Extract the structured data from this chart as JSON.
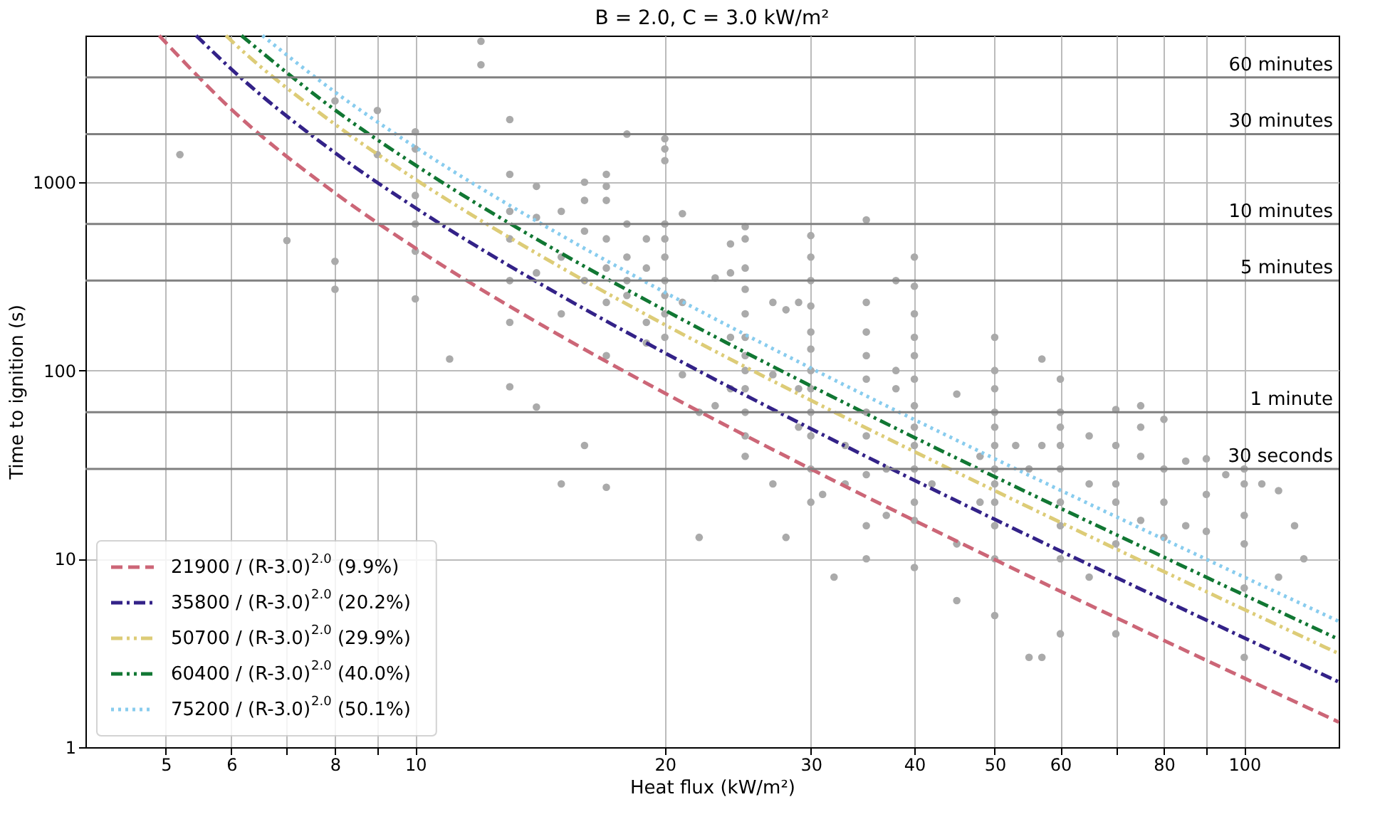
{
  "chart_data": {
    "type": "scatter",
    "title": "B = 2.0, C = 3.0 kW/m²",
    "xlabel": "Heat flux (kW/m²)",
    "ylabel": "Time to ignition (s)",
    "log": "xy",
    "grid": true,
    "legend": "bottom left",
    "xlim": [
      4,
      130
    ],
    "ylim": [
      1,
      6000
    ],
    "xticks": [
      5,
      6,
      {
        "value": 7,
        "label": null
      },
      8,
      {
        "value": 9,
        "label": null
      },
      10,
      20,
      30,
      40,
      50,
      60,
      {
        "value": 70,
        "label": null
      },
      80,
      {
        "value": 90,
        "label": null
      },
      100
    ],
    "yticks": [
      1,
      10,
      100,
      {
        "value": 1000,
        "label": "1000"
      }
    ],
    "series": [
      {
        "color": "#aaaaaa",
        "marker": "circle",
        "x": [
          5.2,
          7,
          8,
          8,
          8,
          9,
          9,
          10,
          10,
          10,
          10,
          10,
          10,
          11,
          12,
          12,
          13,
          13,
          13,
          13,
          13,
          13,
          13,
          14,
          14,
          14,
          14,
          15,
          15,
          15,
          15,
          16,
          16,
          16,
          16,
          16,
          17,
          17,
          17,
          17,
          17,
          17,
          17,
          17,
          18,
          18,
          18,
          18,
          18,
          19,
          19,
          19,
          19,
          20,
          20,
          20,
          20,
          20,
          20,
          20,
          20,
          20,
          20,
          21,
          21,
          21,
          22,
          22,
          23,
          23,
          24,
          24,
          24,
          24,
          25,
          25,
          25,
          25,
          25,
          25,
          25,
          25,
          25,
          25,
          25,
          25,
          27,
          27,
          27,
          28,
          28,
          29,
          29,
          29,
          30,
          30,
          30,
          30,
          30,
          30,
          30,
          30,
          30,
          30,
          30,
          30,
          31,
          32,
          33,
          33,
          35,
          35,
          35,
          35,
          35,
          35,
          35,
          35,
          35,
          35,
          37,
          37,
          38,
          38,
          38,
          40,
          40,
          40,
          40,
          40,
          40,
          40,
          40,
          40,
          40,
          40,
          40,
          40,
          42,
          45,
          45,
          45,
          48,
          48,
          50,
          50,
          50,
          50,
          50,
          50,
          50,
          50,
          50,
          50,
          50,
          50,
          53,
          55,
          55,
          57,
          57,
          57,
          60,
          60,
          60,
          60,
          60,
          60,
          60,
          60,
          60,
          65,
          65,
          65,
          70,
          70,
          70,
          70,
          70,
          70,
          75,
          75,
          75,
          75,
          80,
          80,
          80,
          80,
          85,
          85,
          90,
          90,
          90,
          95,
          100,
          100,
          100,
          100,
          100,
          100,
          105,
          110,
          110,
          115,
          118
        ],
        "values": [
          1400,
          490,
          2700,
          380,
          270,
          2400,
          1400,
          1850,
          1500,
          850,
          600,
          430,
          240,
          115,
          5600,
          4200,
          2150,
          1100,
          700,
          500,
          300,
          180,
          82,
          950,
          650,
          330,
          64,
          700,
          400,
          200,
          25,
          1000,
          800,
          550,
          300,
          40,
          1100,
          950,
          800,
          500,
          350,
          230,
          120,
          24,
          1800,
          600,
          400,
          300,
          250,
          500,
          350,
          180,
          140,
          1700,
          1500,
          1300,
          600,
          500,
          400,
          300,
          250,
          200,
          150,
          680,
          230,
          95,
          60,
          13,
          310,
          65,
          470,
          330,
          150,
          80,
          580,
          500,
          350,
          270,
          200,
          150,
          120,
          100,
          80,
          60,
          45,
          35,
          230,
          95,
          25,
          210,
          13,
          230,
          80,
          50,
          520,
          400,
          300,
          220,
          160,
          130,
          100,
          80,
          60,
          45,
          30,
          20,
          22,
          8,
          40,
          25,
          630,
          230,
          160,
          120,
          90,
          60,
          45,
          28,
          15,
          10,
          30,
          17,
          300,
          100,
          80,
          400,
          280,
          200,
          150,
          120,
          90,
          65,
          50,
          40,
          30,
          20,
          16,
          9,
          25,
          75,
          12,
          6,
          35,
          20,
          150,
          100,
          80,
          60,
          50,
          40,
          30,
          25,
          20,
          15,
          10,
          5,
          40,
          30,
          3,
          115,
          40,
          3,
          90,
          60,
          50,
          40,
          30,
          20,
          15,
          10,
          4,
          45,
          25,
          8,
          62,
          40,
          25,
          20,
          12,
          4,
          65,
          50,
          35,
          16,
          55,
          30,
          20,
          13,
          33,
          15,
          34,
          22,
          14,
          28,
          30,
          25,
          17,
          12,
          7,
          3,
          25,
          23,
          8,
          15,
          10
        ]
      },
      {
        "type": "line",
        "name": "21900 / (R-3.0)$^{2.0}$ (9.9%)",
        "color": "#cc6677",
        "line_style": "dashed",
        "x": [
          4.91,
          6,
          8,
          10,
          15,
          20,
          30,
          50,
          80,
          130
        ],
        "values": [
          6000,
          2433,
          876,
          447,
          152,
          75.8,
          30.0,
          9.91,
          3.69,
          1.36
        ]
      },
      {
        "type": "line",
        "name": "35800 / (R-3.0)$^{2.0}$ (20.2%)",
        "color": "#332288",
        "line_style": "dashdot",
        "x": [
          5.44,
          6,
          8,
          10,
          15,
          20,
          30,
          50,
          80,
          130
        ],
        "values": [
          6000,
          3978,
          1432,
          731,
          249,
          124,
          49.1,
          16.2,
          6.04,
          2.22
        ]
      },
      {
        "type": "line",
        "name": "50700 / (R-3.0)$^{2.0}$ (29.9%)",
        "color": "#ddcc77",
        "line_style": "dashdotdot",
        "x": [
          5.91,
          6,
          8,
          10,
          15,
          20,
          30,
          50,
          80,
          130
        ],
        "values": [
          6000,
          5633,
          2028,
          1035,
          352,
          175,
          69.5,
          23.0,
          8.55,
          3.14
        ]
      },
      {
        "type": "line",
        "name": "60400 / (R-3.0)$^{2.0}$ (40.0%)",
        "color": "#117733",
        "line_style": "dashdotdot",
        "x": [
          6.17,
          8,
          10,
          15,
          20,
          30,
          50,
          80,
          130
        ],
        "values": [
          6000,
          2416,
          1233,
          419,
          209,
          82.9,
          27.3,
          10.2,
          3.74
        ]
      },
      {
        "type": "line",
        "name": "75200 / (R-3.0)$^{2.0}$ (50.1%)",
        "color": "#88ccee",
        "line_style": "dotted",
        "x": [
          6.54,
          8,
          10,
          15,
          20,
          30,
          50,
          80,
          130
        ],
        "values": [
          6000,
          3008,
          1535,
          522,
          260,
          103,
          34.0,
          12.7,
          4.66
        ]
      }
    ],
    "ref_lines": [
      {
        "axis": "y",
        "value": 3600,
        "label": "60 minutes",
        "color": "#808080"
      },
      {
        "axis": "y",
        "value": 1800,
        "label": "30 minutes",
        "color": "#808080"
      },
      {
        "axis": "y",
        "value": 600,
        "label": "10 minutes",
        "color": "#808080"
      },
      {
        "axis": "y",
        "value": 300,
        "label": "5 minutes",
        "color": "#808080"
      },
      {
        "axis": "y",
        "value": 60,
        "label": "1 minute",
        "color": "#808080"
      },
      {
        "axis": "y",
        "value": 30,
        "label": "30 seconds",
        "color": "#808080"
      }
    ]
  }
}
